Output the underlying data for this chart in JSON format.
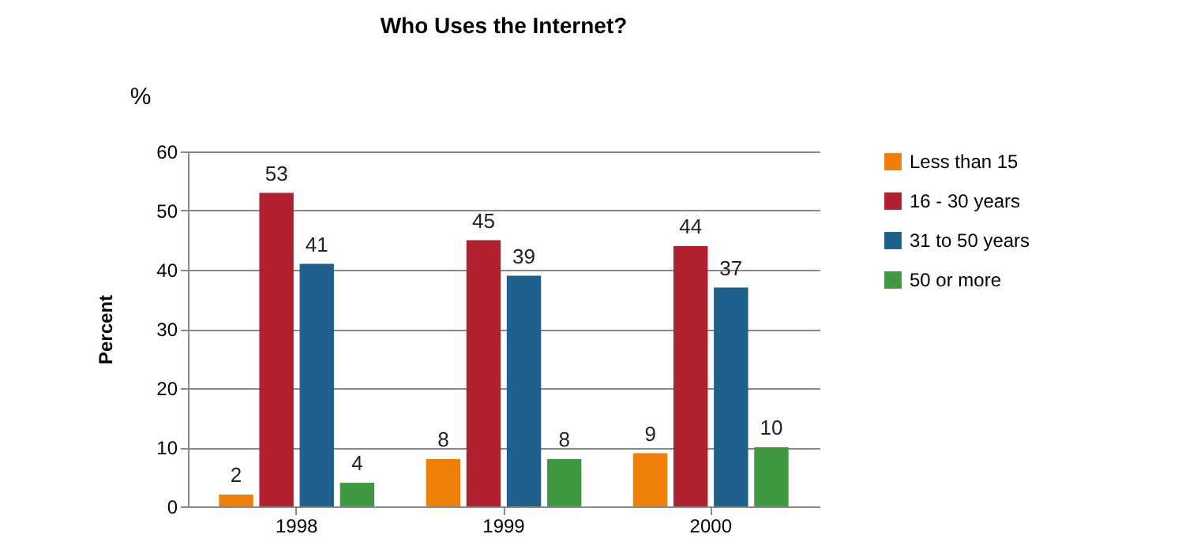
{
  "chart_data": {
    "type": "bar",
    "title": "Who Uses the Internet?",
    "ylabel": "Percent",
    "annotations": [
      "%"
    ],
    "categories": [
      "1998",
      "1999",
      "2000"
    ],
    "series": [
      {
        "name": "Less than 15",
        "color": "#f07f09",
        "values": [
          2,
          8,
          9
        ]
      },
      {
        "name": "16 - 30 years",
        "color": "#b0202e",
        "values": [
          53,
          45,
          44
        ]
      },
      {
        "name": "31 to 50 years",
        "color": "#1f5f8b",
        "values": [
          41,
          39,
          37
        ]
      },
      {
        "name": "50 or more",
        "color": "#3f9a3f",
        "values": [
          4,
          8,
          10
        ]
      }
    ],
    "ylim": [
      0,
      60
    ],
    "yticks": [
      0,
      10,
      20,
      30,
      40,
      50,
      60
    ],
    "grid": "y",
    "legend": "right",
    "data_labels": true
  }
}
